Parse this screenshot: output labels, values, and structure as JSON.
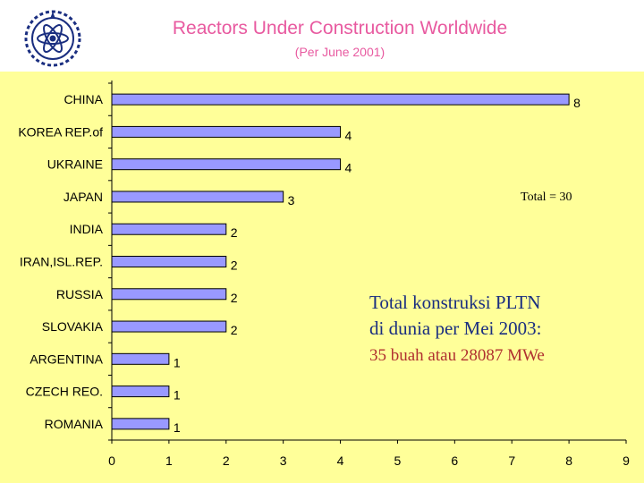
{
  "header": {
    "title": "Reactors Under Construction Worldwide",
    "subtitle": "(Per June 2001)"
  },
  "chart_data": {
    "type": "bar",
    "orientation": "horizontal",
    "title": "",
    "xlabel": "",
    "ylabel": "",
    "categories": [
      "CHINA",
      "KOREA REP.of",
      "UKRAINE",
      "JAPAN",
      "INDIA",
      "IRAN,ISL.REP.",
      "RUSSIA",
      "SLOVAKIA",
      "ARGENTINA",
      "CZECH REO.",
      "ROMANIA"
    ],
    "values": [
      8,
      4,
      4,
      3,
      2,
      2,
      2,
      2,
      1,
      1,
      1
    ],
    "xlim": [
      0,
      9
    ],
    "xticks": [
      "0",
      "1",
      "2",
      "3",
      "4",
      "5",
      "6",
      "7",
      "8",
      "9"
    ],
    "grid": false,
    "legend": "none",
    "colors": {
      "background": "#ffff99",
      "bar": "#9999ff",
      "bar_edge": "#000000",
      "axis": "#000000"
    }
  },
  "annotations": {
    "total": "Total = 30",
    "line1": "Total konstruksi PLTN",
    "line2": "di dunia per Mei 2003:",
    "line3": "35 buah atau 28087 MWe"
  }
}
